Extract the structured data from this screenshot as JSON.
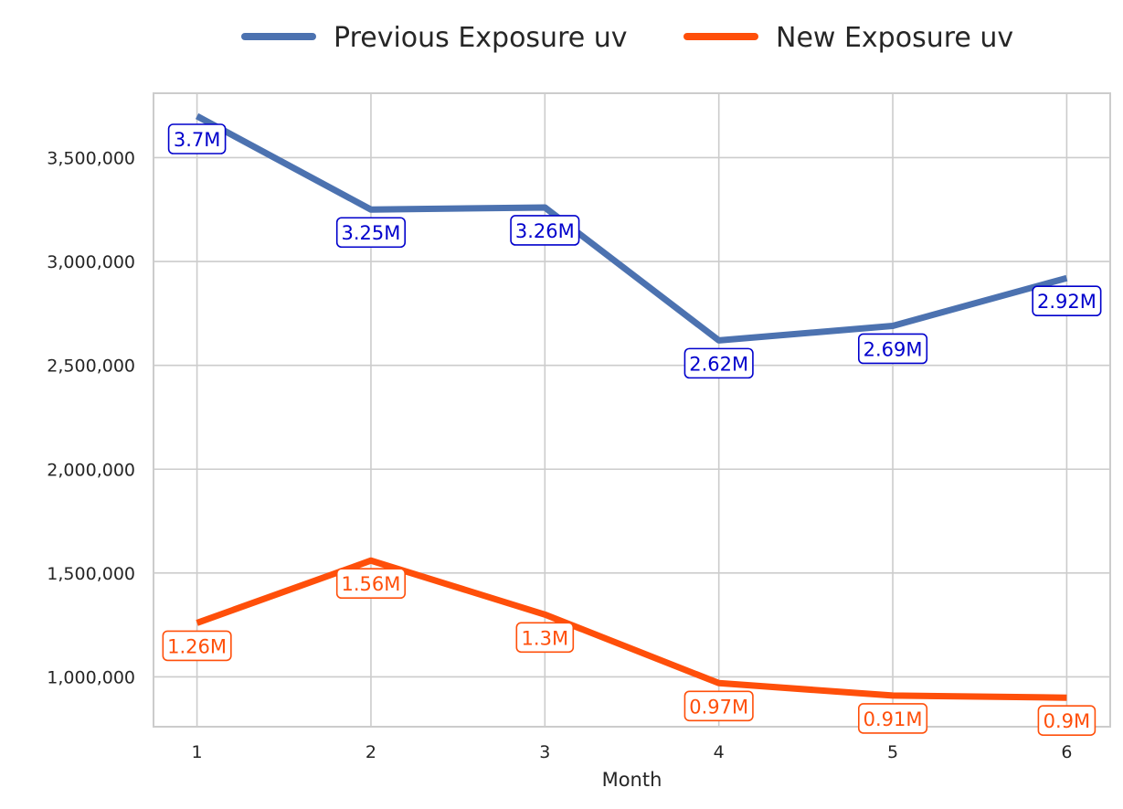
{
  "chart_data": {
    "type": "line",
    "title": "",
    "xlabel": "Month",
    "ylabel": "",
    "x": [
      1,
      2,
      3,
      4,
      5,
      6
    ],
    "x_tick_labels": [
      "1",
      "2",
      "3",
      "4",
      "5",
      "6"
    ],
    "xlim": [
      0.75,
      6.25
    ],
    "ylim": [
      760000,
      3810000
    ],
    "y_ticks": [
      1000000,
      1500000,
      2000000,
      2500000,
      3000000,
      3500000
    ],
    "y_tick_labels": [
      "1,000,000",
      "1,500,000",
      "2,000,000",
      "2,500,000",
      "3,000,000",
      "3,500,000"
    ],
    "grid": true,
    "legend_position": "top-center",
    "series": [
      {
        "name": "Previous Exposure uv",
        "color": "#4c72b0",
        "label_color": "#0000cc",
        "values": [
          3700000,
          3250000,
          3260000,
          2620000,
          2690000,
          2920000
        ],
        "data_labels": [
          "3.7M",
          "3.25M",
          "3.26M",
          "2.62M",
          "2.69M",
          "2.92M"
        ]
      },
      {
        "name": "New Exposure uv",
        "color": "#ff4f0a",
        "label_color": "#ff4f0a",
        "values": [
          1260000,
          1560000,
          1300000,
          970000,
          910000,
          900000
        ],
        "data_labels": [
          "1.26M",
          "1.56M",
          "1.3M",
          "0.97M",
          "0.91M",
          "0.9M"
        ]
      }
    ]
  }
}
